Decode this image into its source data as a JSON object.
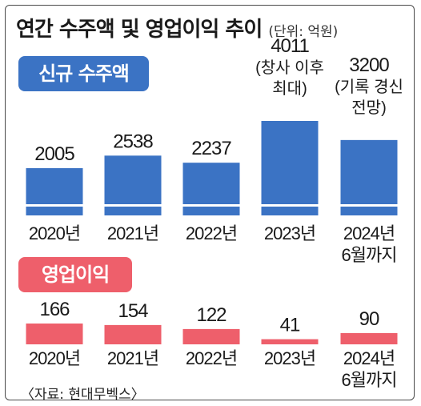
{
  "title": "연간 수주액 및 영업이익 추이",
  "unit": "(단위: 억원)",
  "source": "〈자료: 현대무벡스〉",
  "colors": {
    "orders": "#3b73c4",
    "profit": "#ee5f6b"
  },
  "chart_data": [
    {
      "type": "bar",
      "label": "신규 수주액",
      "categories": [
        "2020년",
        "2021년",
        "2022년",
        "2023년",
        "2024년\n6월까지"
      ],
      "values": [
        2005,
        2538,
        2237,
        4011,
        3200
      ],
      "annotations": [
        "",
        "",
        "",
        "(창사 이후\n최대)",
        "(기록 경신\n전망)"
      ],
      "ylim": [
        0,
        4011
      ]
    },
    {
      "type": "bar",
      "label": "영업이익",
      "categories": [
        "2020년",
        "2021년",
        "2022년",
        "2023년",
        "2024년\n6월까지"
      ],
      "values": [
        166,
        154,
        122,
        41,
        90
      ],
      "ylim": [
        0,
        166
      ]
    }
  ]
}
